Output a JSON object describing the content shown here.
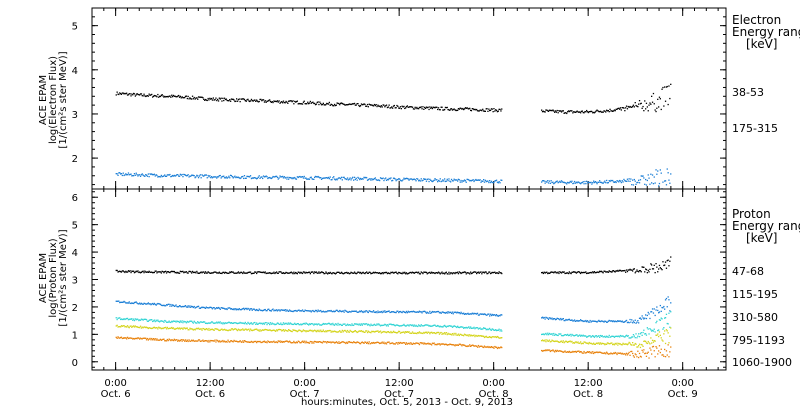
{
  "chart_data": [
    {
      "type": "scatter",
      "panel": "electron",
      "ylabel_lines": [
        "ACE EPAM",
        "log(Electron Flux)",
        "[1/(cm²s ster MeV)]"
      ],
      "ylim": [
        1.3,
        5.4
      ],
      "yticks": [
        2,
        3,
        4,
        5
      ],
      "legend_title": [
        "Electron",
        "Energy range",
        "[keV]"
      ],
      "series": [
        {
          "name": "38-53",
          "color": "#000000",
          "x": [
            0,
            6,
            12,
            18,
            24,
            30,
            36,
            42,
            48,
            54,
            60,
            66,
            72,
            78,
            84,
            90,
            96,
            102,
            108,
            114,
            120,
            126,
            132,
            138,
            141
          ],
          "y": [
            3.48,
            3.44,
            3.42,
            3.39,
            3.35,
            3.33,
            3.31,
            3.29,
            3.27,
            3.24,
            3.22,
            3.2,
            3.17,
            3.15,
            3.13,
            3.12,
            3.1,
            3.1,
            3.08,
            3.06,
            3.06,
            3.1,
            3.18,
            3.3,
            3.55
          ]
        },
        {
          "name": "175-315",
          "color": "#1c7fd6",
          "x": [
            0,
            12,
            24,
            36,
            48,
            60,
            72,
            84,
            96,
            108,
            120,
            132,
            141
          ],
          "y": [
            1.65,
            1.62,
            1.6,
            1.58,
            1.57,
            1.55,
            1.53,
            1.51,
            1.49,
            1.47,
            1.46,
            1.5,
            1.55
          ]
        }
      ]
    },
    {
      "type": "scatter",
      "panel": "proton",
      "ylabel_lines": [
        "ACE EPAM",
        "log(Proton Flux)",
        "[1/(cm²s ster MeV)]"
      ],
      "ylim": [
        -0.3,
        6.3
      ],
      "yticks": [
        0,
        1,
        2,
        3,
        4,
        5,
        6
      ],
      "legend_title": [
        "Proton",
        "Energy range",
        "[keV]"
      ],
      "series": [
        {
          "name": "47-68",
          "color": "#000000",
          "x": [
            0,
            12,
            24,
            36,
            48,
            60,
            72,
            84,
            96,
            108,
            120,
            132,
            141
          ],
          "y": [
            3.32,
            3.29,
            3.28,
            3.27,
            3.27,
            3.26,
            3.26,
            3.26,
            3.27,
            3.27,
            3.28,
            3.35,
            3.55
          ]
        },
        {
          "name": "115-195",
          "color": "#1c7fd6",
          "x": [
            0,
            12,
            24,
            36,
            48,
            60,
            72,
            84,
            96,
            108,
            120,
            132,
            141
          ],
          "y": [
            2.22,
            2.1,
            1.98,
            1.92,
            1.88,
            1.86,
            1.84,
            1.82,
            1.72,
            1.62,
            1.5,
            1.5,
            2.2
          ]
        },
        {
          "name": "310-580",
          "color": "#33d4d4",
          "x": [
            0,
            12,
            24,
            36,
            48,
            60,
            72,
            84,
            96,
            108,
            120,
            132,
            141
          ],
          "y": [
            1.6,
            1.5,
            1.45,
            1.42,
            1.4,
            1.38,
            1.36,
            1.32,
            1.2,
            1.05,
            0.95,
            0.95,
            1.6
          ]
        },
        {
          "name": "795-1193",
          "color": "#d4d41c",
          "x": [
            0,
            12,
            24,
            36,
            48,
            60,
            72,
            84,
            96,
            108,
            120,
            132,
            141
          ],
          "y": [
            1.32,
            1.25,
            1.2,
            1.18,
            1.15,
            1.13,
            1.1,
            1.05,
            0.92,
            0.8,
            0.7,
            0.65,
            1.0
          ]
        },
        {
          "name": "1060-1900",
          "color": "#e8820c",
          "x": [
            0,
            12,
            24,
            36,
            48,
            60,
            72,
            84,
            96,
            108,
            120,
            132,
            141
          ],
          "y": [
            0.9,
            0.82,
            0.78,
            0.76,
            0.74,
            0.72,
            0.7,
            0.66,
            0.55,
            0.44,
            0.36,
            0.3,
            0.45
          ]
        }
      ]
    }
  ],
  "x_axis": {
    "ticks_major": [
      {
        "x": 0,
        "top": "0:00",
        "bottom": "Oct. 6"
      },
      {
        "x": 24,
        "top": "12:00",
        "bottom": "Oct. 6"
      },
      {
        "x": 48,
        "top": "0:00",
        "bottom": "Oct. 7"
      },
      {
        "x": 72,
        "top": "12:00",
        "bottom": "Oct. 7"
      },
      {
        "x": 96,
        "top": "0:00",
        "bottom": "Oct. 8"
      },
      {
        "x": 120,
        "top": "12:00",
        "bottom": "Oct. 8"
      },
      {
        "x": 144,
        "top": "0:00",
        "bottom": "Oct. 9"
      }
    ],
    "xlim": [
      -6,
      155
    ],
    "gaps": [
      [
        98,
        108
      ]
    ],
    "xlabel": "hours:minutes, Oct.  5, 2013 - Oct.  9, 2013"
  }
}
